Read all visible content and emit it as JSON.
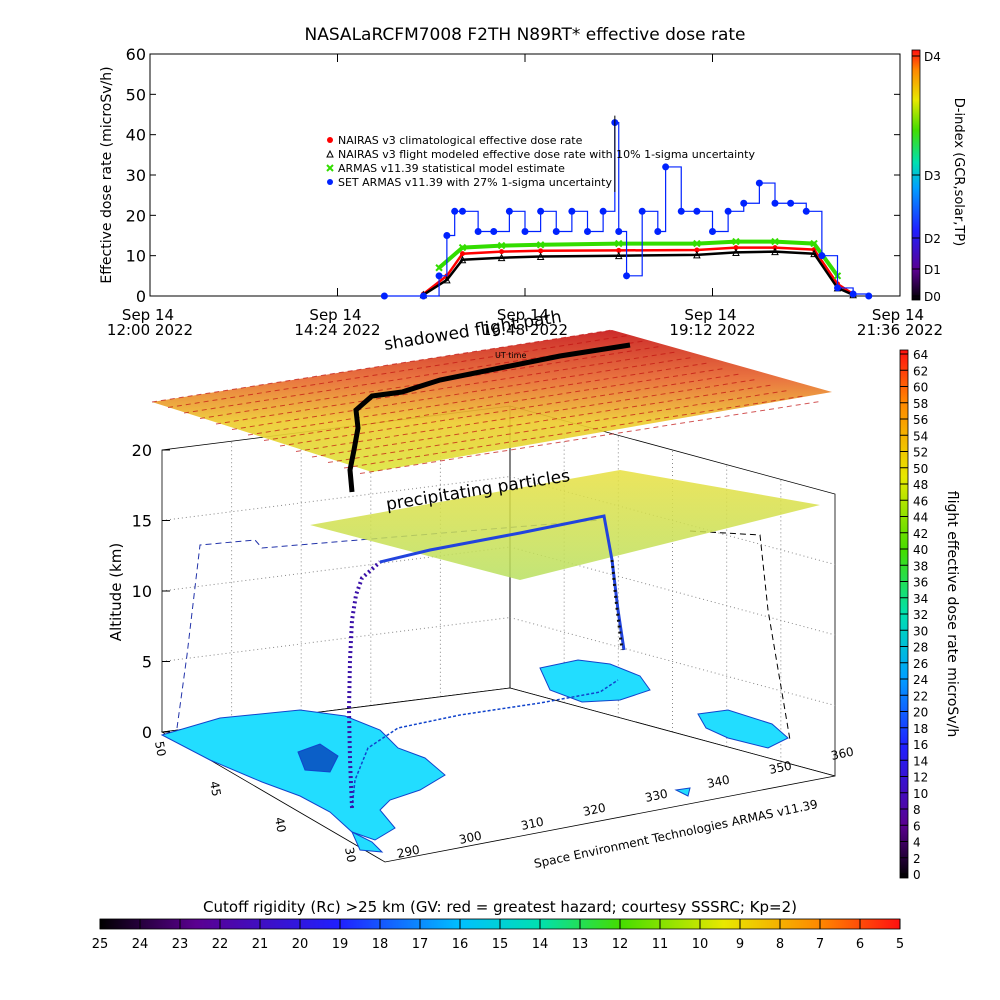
{
  "title": "NASALaRCFM7008  F2TH N89RT* effective dose rate",
  "top_chart": {
    "ylabel": "Effective dose rate (microSv/h)",
    "ylim": [
      0,
      60
    ],
    "yticks": [
      "0",
      "10",
      "20",
      "30",
      "40",
      "50",
      "60"
    ],
    "xticks": [
      {
        "line1": "Sep 14",
        "line2": "12:00 2022"
      },
      {
        "line1": "Sep 14",
        "line2": "14:24 2022"
      },
      {
        "line1": "Sep 14",
        "line2": "16:48 2022"
      },
      {
        "line1": "Sep 14",
        "line2": "19:12 2022"
      },
      {
        "line1": "Sep 14",
        "line2": "21:36 2022"
      }
    ],
    "legend": [
      {
        "label": "NAIRAS v3 climatological effective dose rate",
        "color": "#ff0000",
        "marker": "o"
      },
      {
        "label": "NAIRAS v3 flight modeled effective dose rate with 10% 1-sigma uncertainty",
        "color": "#000000",
        "marker": "^"
      },
      {
        "label": "ARMAS v11.39 statistical model estimate",
        "color": "#33dd00",
        "marker": "x"
      },
      {
        "label": "SET ARMAS v11.39 with 27% 1-sigma uncertainty",
        "color": "#0022ff",
        "marker": "o"
      }
    ],
    "dindex": {
      "label": "D-index (GCR,solar,TP)",
      "ticks": [
        "D0",
        "D1",
        "D2",
        "D3",
        "D4"
      ]
    }
  },
  "chart_data": [
    {
      "type": "line",
      "title": "NASALaRCFM7008  F2TH N89RT* effective dose rate",
      "xlabel": "",
      "ylabel": "Effective dose rate (microSv/h)",
      "x_units": "hours UTC, Sep 14 2022",
      "xlim": [
        12.0,
        21.6
      ],
      "ylim": [
        0,
        60
      ],
      "series": [
        {
          "name": "NAIRAS v3 climatological effective dose rate",
          "x": [
            15.5,
            15.8,
            16.0,
            16.5,
            17.0,
            18.0,
            19.0,
            19.5,
            20.0,
            20.5,
            20.8,
            21.0
          ],
          "values": [
            0.5,
            5.0,
            10.5,
            11.0,
            11.2,
            11.3,
            11.4,
            12.0,
            12.0,
            11.5,
            3.0,
            0.5
          ]
        },
        {
          "name": "NAIRAS v3 flight modeled effective dose rate with 10% 1-sigma uncertainty",
          "x": [
            15.5,
            15.8,
            16.0,
            16.5,
            17.0,
            18.0,
            19.0,
            19.5,
            20.0,
            20.5,
            20.8,
            21.0
          ],
          "values": [
            0.3,
            4.0,
            9.0,
            9.5,
            9.8,
            10.0,
            10.2,
            10.8,
            11.0,
            10.5,
            2.0,
            0.3
          ]
        },
        {
          "name": "ARMAS v11.39 statistical model estimate",
          "x": [
            15.7,
            16.0,
            16.5,
            17.0,
            18.0,
            19.0,
            19.5,
            20.0,
            20.5,
            20.8
          ],
          "values": [
            7.0,
            12.0,
            12.5,
            12.7,
            13.0,
            13.0,
            13.5,
            13.5,
            13.0,
            5.0
          ]
        },
        {
          "name": "SET ARMAS v11.39 with 27% 1-sigma uncertainty",
          "x": [
            15.0,
            15.5,
            15.7,
            15.8,
            15.9,
            16.0,
            16.2,
            16.4,
            16.6,
            16.8,
            17.0,
            17.2,
            17.4,
            17.6,
            17.8,
            17.95,
            18.0,
            18.1,
            18.3,
            18.5,
            18.6,
            18.8,
            19.0,
            19.2,
            19.4,
            19.6,
            19.8,
            20.0,
            20.2,
            20.4,
            20.6,
            20.8,
            21.0,
            21.2
          ],
          "values": [
            0,
            0,
            5,
            15,
            21,
            21,
            16,
            16,
            21,
            16,
            21,
            16,
            21,
            16,
            21,
            43,
            16,
            5,
            21,
            16,
            32,
            21,
            21,
            16,
            21,
            23,
            28,
            23,
            23,
            21,
            10,
            2,
            0.5,
            0
          ]
        }
      ]
    },
    {
      "type": "scatter",
      "title": "",
      "ylabel": "Altitude (km)",
      "zlim": [
        0,
        20
      ],
      "colorbar_label": "flight effective dose rate microSv/h",
      "colorbar_range": [
        0,
        64
      ],
      "colorbar_ticks": [
        "0",
        "2",
        "4",
        "6",
        "8",
        "10",
        "12",
        "14",
        "16",
        "18",
        "20",
        "22",
        "24",
        "26",
        "28",
        "30",
        "32",
        "34",
        "36",
        "38",
        "40",
        "42",
        "44",
        "46",
        "48",
        "50",
        "52",
        "54",
        "56",
        "58",
        "60",
        "62",
        "64"
      ],
      "lat_ticks": [
        "30",
        "40",
        "45",
        "50"
      ],
      "lon_ticks": [
        "290",
        "300",
        "310",
        "320",
        "330",
        "340",
        "350",
        "360"
      ],
      "annotations": [
        "shadowed flight path",
        "precipitating particles"
      ],
      "credit": "Space Environment Technologies ARMAS v11.39",
      "cutoff_rigidity": {
        "label": "Cutoff rigidity (Rc) >25 km (GV: red = greatest hazard; courtesy SSSRC; Kp=2)",
        "ticks": [
          "25",
          "24",
          "23",
          "22",
          "21",
          "20",
          "19",
          "18",
          "17",
          "16",
          "15",
          "14",
          "13",
          "12",
          "11",
          "10",
          "9",
          "8",
          "7",
          "6",
          "5"
        ]
      }
    }
  ],
  "overlay_text": {
    "flight_label": "flight path",
    "flight_time_overlap": "Sep 14",
    "shadow_label": "shadowed flight path",
    "tiny_label": "UT time"
  },
  "colors": {
    "nairas_clim": "#ff0000",
    "nairas_flight": "#000000",
    "armas_model": "#33dd00",
    "set_armas": "#0022ff",
    "land": "#22ddff",
    "coast": "#0044cc"
  }
}
